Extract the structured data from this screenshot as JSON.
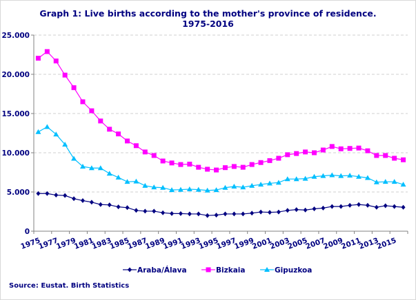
{
  "chart_data": {
    "type": "line",
    "title": "Graph 1: Live births according to the mother's province of residence.",
    "subtitle": "1975-2016",
    "source": "Source: Eustat. Birth Statistics",
    "x": [
      1975,
      1976,
      1977,
      1978,
      1979,
      1980,
      1981,
      1982,
      1983,
      1984,
      1985,
      1986,
      1987,
      1988,
      1989,
      1990,
      1991,
      1992,
      1993,
      1994,
      1995,
      1996,
      1997,
      1998,
      1999,
      2000,
      2001,
      2002,
      2003,
      2004,
      2005,
      2006,
      2007,
      2008,
      2009,
      2010,
      2011,
      2012,
      2013,
      2014,
      2015,
      2016
    ],
    "x_tick_labels": [
      "1975",
      "1977",
      "1979",
      "1981",
      "1983",
      "1985",
      "1987",
      "1989",
      "1991",
      "1993",
      "1995",
      "1997",
      "1999",
      "2001",
      "2003",
      "2005",
      "2007",
      "2009",
      "2011",
      "2013",
      "2015"
    ],
    "y_tick_labels": [
      "0",
      "5.000",
      "10.000",
      "15.000",
      "20.000",
      "25.000"
    ],
    "ylim": [
      0,
      25000
    ],
    "grid": "horizontal dashed",
    "legend": "bottom",
    "series": [
      {
        "name": "Araba/Álava",
        "color": "#000080",
        "marker": "diamond",
        "values": [
          4800,
          4800,
          4600,
          4550,
          4150,
          3900,
          3700,
          3400,
          3350,
          3100,
          3000,
          2650,
          2550,
          2550,
          2350,
          2250,
          2250,
          2200,
          2200,
          2000,
          2050,
          2200,
          2200,
          2200,
          2300,
          2450,
          2400,
          2450,
          2650,
          2750,
          2700,
          2850,
          2950,
          3150,
          3150,
          3300,
          3400,
          3300,
          3050,
          3250,
          3150,
          3050
        ]
      },
      {
        "name": "Bizkaia",
        "color": "#ff00ff",
        "marker": "square",
        "values": [
          22050,
          22900,
          21700,
          19900,
          18300,
          16500,
          15350,
          14050,
          13000,
          12400,
          11500,
          10900,
          10100,
          9650,
          8950,
          8700,
          8500,
          8550,
          8150,
          7900,
          7800,
          8100,
          8250,
          8150,
          8500,
          8750,
          9000,
          9300,
          9750,
          9900,
          10100,
          10000,
          10350,
          10800,
          10500,
          10550,
          10600,
          10250,
          9650,
          9650,
          9300,
          9100
        ]
      },
      {
        "name": "Gipuzkoa",
        "color": "#00bfff",
        "marker": "triangle",
        "values": [
          12650,
          13300,
          12350,
          11050,
          9250,
          8250,
          8050,
          8050,
          7350,
          6850,
          6300,
          6350,
          5800,
          5600,
          5550,
          5250,
          5300,
          5350,
          5300,
          5200,
          5250,
          5550,
          5700,
          5600,
          5800,
          5950,
          6100,
          6200,
          6650,
          6650,
          6700,
          6950,
          7050,
          7150,
          7050,
          7100,
          6950,
          6800,
          6250,
          6300,
          6300,
          5950
        ]
      }
    ]
  }
}
